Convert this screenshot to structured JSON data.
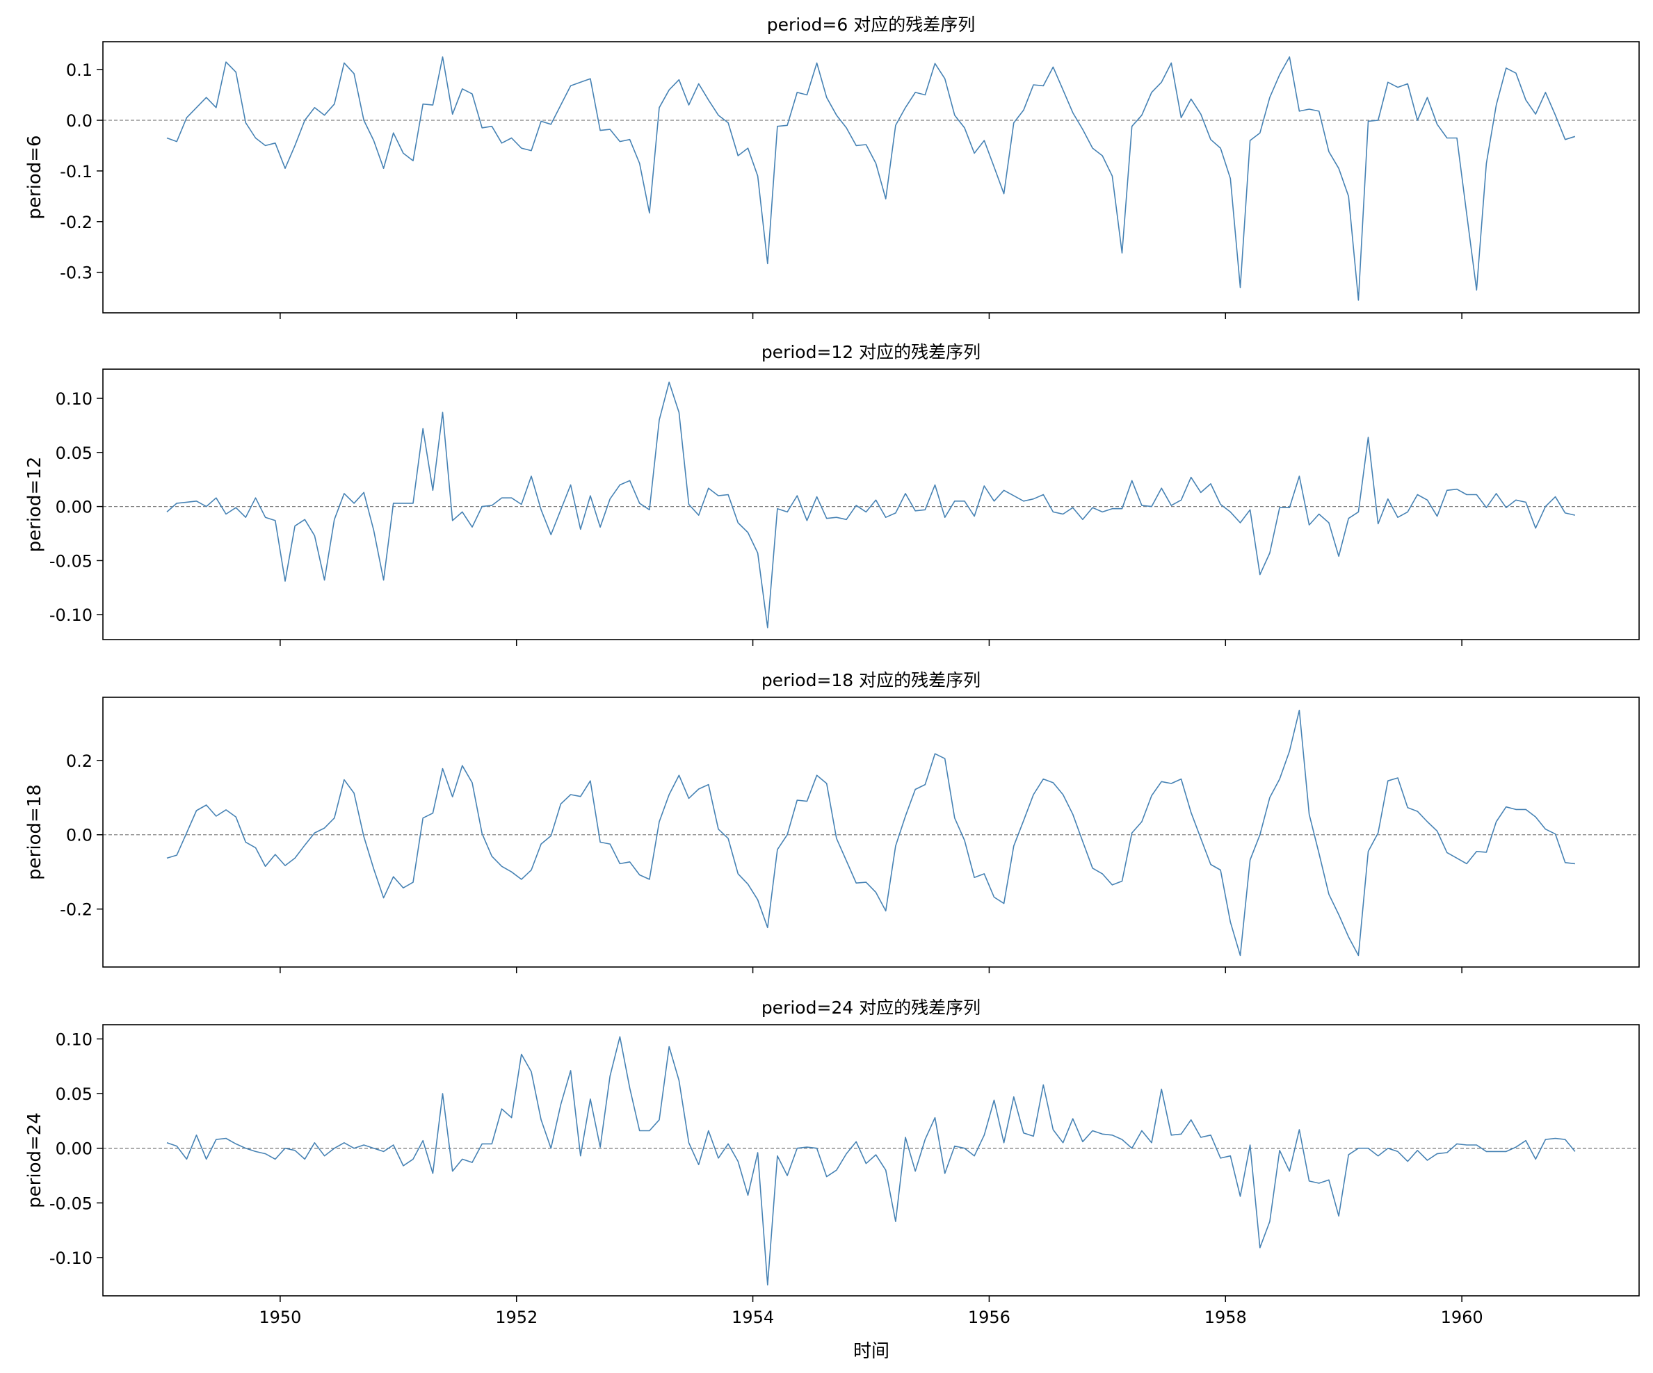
{
  "figure": {
    "xlabel": "时间"
  },
  "chart_data": [
    {
      "type": "line",
      "title": "period=6 对应的残差序列",
      "ylabel": "period=6",
      "xlim": [
        1948.5,
        1961.5
      ],
      "ylim": [
        -0.38,
        0.155
      ],
      "x_ticks": [
        1950,
        1952,
        1954,
        1956,
        1958,
        1960
      ],
      "x_tick_labels": [],
      "y_ticks": [
        0.1,
        0.0,
        -0.1,
        -0.2,
        -0.3
      ],
      "y_tick_labels": [
        "0.1",
        "0.0",
        "-0.1",
        "-0.2",
        "-0.3"
      ],
      "x_start": 1949.0417,
      "x_step": 0.08333,
      "line_color": "#4682b4",
      "zero_line_color": "#808080",
      "values": [
        -0.035,
        -0.042,
        0.005,
        0.025,
        0.045,
        0.025,
        0.115,
        0.095,
        -0.005,
        -0.035,
        -0.05,
        -0.045,
        -0.095,
        -0.05,
        0.0,
        0.025,
        0.01,
        0.032,
        0.113,
        0.092,
        0.0,
        -0.04,
        -0.095,
        -0.025,
        -0.065,
        -0.08,
        0.032,
        0.03,
        0.125,
        0.012,
        0.062,
        0.052,
        -0.015,
        -0.012,
        -0.045,
        -0.035,
        -0.055,
        -0.06,
        -0.002,
        -0.008,
        0.03,
        0.068,
        0.075,
        0.082,
        -0.02,
        -0.018,
        -0.042,
        -0.038,
        -0.085,
        -0.183,
        0.025,
        0.06,
        0.08,
        0.03,
        0.072,
        0.04,
        0.01,
        -0.005,
        -0.07,
        -0.055,
        -0.11,
        -0.283,
        -0.012,
        -0.01,
        0.055,
        0.05,
        0.113,
        0.045,
        0.01,
        -0.015,
        -0.05,
        -0.048,
        -0.085,
        -0.155,
        -0.01,
        0.025,
        0.055,
        0.05,
        0.112,
        0.082,
        0.01,
        -0.015,
        -0.065,
        -0.04,
        -0.092,
        -0.145,
        -0.005,
        0.02,
        0.07,
        0.068,
        0.105,
        0.06,
        0.015,
        -0.018,
        -0.055,
        -0.07,
        -0.11,
        -0.262,
        -0.012,
        0.01,
        0.055,
        0.075,
        0.113,
        0.005,
        0.042,
        0.012,
        -0.038,
        -0.055,
        -0.115,
        -0.33,
        -0.04,
        -0.025,
        0.045,
        0.09,
        0.125,
        0.018,
        0.022,
        0.018,
        -0.062,
        -0.095,
        -0.15,
        -0.355,
        -0.002,
        0.0,
        0.075,
        0.065,
        0.072,
        0.0,
        0.045,
        -0.008,
        -0.035,
        -0.035,
        -0.185,
        -0.335,
        -0.085,
        0.03,
        0.103,
        0.093,
        0.04,
        0.012,
        0.055,
        0.01,
        -0.038,
        -0.032
      ]
    },
    {
      "type": "line",
      "title": "period=12 对应的残差序列",
      "ylabel": "period=12",
      "xlim": [
        1948.5,
        1961.5
      ],
      "ylim": [
        -0.123,
        0.127
      ],
      "x_ticks": [
        1950,
        1952,
        1954,
        1956,
        1958,
        1960
      ],
      "x_tick_labels": [],
      "y_ticks": [
        0.1,
        0.05,
        0.0,
        -0.05,
        -0.1
      ],
      "y_tick_labels": [
        "0.10",
        "0.05",
        "0.00",
        "-0.05",
        "-0.10"
      ],
      "x_start": 1949.0417,
      "x_step": 0.08333,
      "line_color": "#4682b4",
      "zero_line_color": "#808080",
      "values": [
        -0.005,
        0.003,
        0.004,
        0.005,
        0.0,
        0.008,
        -0.007,
        -0.001,
        -0.01,
        0.008,
        -0.01,
        -0.013,
        -0.069,
        -0.018,
        -0.012,
        -0.027,
        -0.068,
        -0.012,
        0.012,
        0.003,
        0.013,
        -0.022,
        -0.068,
        0.003,
        0.003,
        0.003,
        0.072,
        0.015,
        0.087,
        -0.013,
        -0.005,
        -0.019,
        0.0,
        0.001,
        0.008,
        0.008,
        0.002,
        0.028,
        -0.003,
        -0.026,
        -0.003,
        0.02,
        -0.021,
        0.01,
        -0.019,
        0.007,
        0.02,
        0.024,
        0.003,
        -0.003,
        0.08,
        0.115,
        0.087,
        0.002,
        -0.008,
        0.017,
        0.01,
        0.011,
        -0.015,
        -0.024,
        -0.043,
        -0.112,
        -0.002,
        -0.005,
        0.01,
        -0.013,
        0.009,
        -0.011,
        -0.01,
        -0.012,
        0.001,
        -0.005,
        0.006,
        -0.01,
        -0.006,
        0.012,
        -0.004,
        -0.003,
        0.02,
        -0.01,
        0.005,
        0.005,
        -0.009,
        0.019,
        0.005,
        0.015,
        0.01,
        0.005,
        0.007,
        0.011,
        -0.005,
        -0.007,
        -0.001,
        -0.012,
        -0.001,
        -0.005,
        -0.002,
        -0.002,
        0.024,
        0.001,
        0.0,
        0.017,
        0.001,
        0.006,
        0.027,
        0.013,
        0.021,
        0.002,
        -0.005,
        -0.015,
        -0.003,
        -0.063,
        -0.043,
        -0.001,
        -0.001,
        0.028,
        -0.017,
        -0.007,
        -0.015,
        -0.046,
        -0.011,
        -0.005,
        0.064,
        -0.016,
        0.007,
        -0.01,
        -0.005,
        0.011,
        0.006,
        -0.009,
        0.015,
        0.016,
        0.011,
        0.011,
        -0.001,
        0.012,
        -0.001,
        0.006,
        0.004,
        -0.02,
        0.0,
        0.009,
        -0.006,
        -0.008
      ]
    },
    {
      "type": "line",
      "title": "period=18 对应的残差序列",
      "ylabel": "period=18",
      "xlim": [
        1948.5,
        1961.5
      ],
      "ylim": [
        -0.356,
        0.37
      ],
      "x_ticks": [
        1950,
        1952,
        1954,
        1956,
        1958,
        1960
      ],
      "x_tick_labels": [],
      "y_ticks": [
        0.2,
        0.0,
        -0.2
      ],
      "y_tick_labels": [
        "0.2",
        "0.0",
        "-0.2"
      ],
      "x_start": 1949.0417,
      "x_step": 0.08333,
      "line_color": "#4682b4",
      "zero_line_color": "#808080",
      "values": [
        -0.063,
        -0.055,
        0.005,
        0.065,
        0.08,
        0.05,
        0.067,
        0.048,
        -0.02,
        -0.035,
        -0.085,
        -0.053,
        -0.083,
        -0.063,
        -0.028,
        0.005,
        0.018,
        0.045,
        0.148,
        0.112,
        -0.005,
        -0.092,
        -0.17,
        -0.113,
        -0.143,
        -0.128,
        0.045,
        0.058,
        0.178,
        0.102,
        0.186,
        0.14,
        0.003,
        -0.058,
        -0.085,
        -0.1,
        -0.12,
        -0.095,
        -0.025,
        -0.003,
        0.083,
        0.108,
        0.103,
        0.145,
        -0.02,
        -0.025,
        -0.078,
        -0.073,
        -0.108,
        -0.12,
        0.035,
        0.108,
        0.16,
        0.098,
        0.123,
        0.135,
        0.015,
        -0.01,
        -0.105,
        -0.133,
        -0.175,
        -0.25,
        -0.04,
        0.0,
        0.093,
        0.09,
        0.16,
        0.138,
        -0.01,
        -0.07,
        -0.13,
        -0.128,
        -0.155,
        -0.205,
        -0.03,
        0.05,
        0.122,
        0.135,
        0.218,
        0.205,
        0.045,
        -0.015,
        -0.115,
        -0.105,
        -0.168,
        -0.185,
        -0.03,
        0.038,
        0.108,
        0.15,
        0.14,
        0.108,
        0.055,
        -0.018,
        -0.09,
        -0.105,
        -0.135,
        -0.125,
        0.005,
        0.035,
        0.105,
        0.143,
        0.138,
        0.15,
        0.06,
        -0.01,
        -0.08,
        -0.095,
        -0.235,
        -0.325,
        -0.068,
        0.0,
        0.1,
        0.15,
        0.225,
        0.335,
        0.055,
        -0.05,
        -0.16,
        -0.215,
        -0.275,
        -0.325,
        -0.045,
        0.005,
        0.145,
        0.153,
        0.073,
        0.063,
        0.035,
        0.01,
        -0.048,
        -0.063,
        -0.078,
        -0.045,
        -0.047,
        0.035,
        0.075,
        0.068,
        0.068,
        0.048,
        0.015,
        0.002,
        -0.075,
        -0.078
      ]
    },
    {
      "type": "line",
      "title": "period=24 对应的残差序列",
      "ylabel": "period=24",
      "xlim": [
        1948.5,
        1961.5
      ],
      "ylim": [
        -0.135,
        0.113
      ],
      "x_ticks": [
        1950,
        1952,
        1954,
        1956,
        1958,
        1960
      ],
      "x_tick_labels": [
        "1950",
        "1952",
        "1954",
        "1956",
        "1958",
        "1960"
      ],
      "y_ticks": [
        0.1,
        0.05,
        0.0,
        -0.05,
        -0.1
      ],
      "y_tick_labels": [
        "0.10",
        "0.05",
        "0.00",
        "-0.05",
        "-0.10"
      ],
      "x_start": 1949.0417,
      "x_step": 0.08333,
      "line_color": "#4682b4",
      "zero_line_color": "#808080",
      "values": [
        0.005,
        0.002,
        -0.01,
        0.012,
        -0.01,
        0.008,
        0.009,
        0.004,
        0.0,
        -0.003,
        -0.005,
        -0.01,
        0.0,
        -0.002,
        -0.01,
        0.005,
        -0.007,
        0.0,
        0.005,
        0.0,
        0.003,
        0.0,
        -0.003,
        0.003,
        -0.016,
        -0.01,
        0.007,
        -0.023,
        0.05,
        -0.021,
        -0.01,
        -0.013,
        0.004,
        0.004,
        0.036,
        0.028,
        0.086,
        0.07,
        0.026,
        0.0,
        0.04,
        0.071,
        -0.007,
        0.045,
        0.001,
        0.066,
        0.102,
        0.055,
        0.016,
        0.016,
        0.026,
        0.093,
        0.062,
        0.005,
        -0.015,
        0.016,
        -0.009,
        0.004,
        -0.012,
        -0.043,
        -0.004,
        -0.125,
        -0.007,
        -0.025,
        0.0,
        0.001,
        0.0,
        -0.026,
        -0.02,
        -0.005,
        0.006,
        -0.014,
        -0.006,
        -0.02,
        -0.067,
        0.01,
        -0.021,
        0.008,
        0.028,
        -0.023,
        0.002,
        0.0,
        -0.007,
        0.012,
        0.044,
        0.005,
        0.047,
        0.014,
        0.011,
        0.058,
        0.017,
        0.005,
        0.027,
        0.006,
        0.016,
        0.013,
        0.012,
        0.008,
        0.0,
        0.016,
        0.005,
        0.054,
        0.012,
        0.013,
        0.026,
        0.01,
        0.012,
        -0.009,
        -0.007,
        -0.044,
        0.003,
        -0.091,
        -0.067,
        -0.002,
        -0.021,
        0.017,
        -0.03,
        -0.032,
        -0.029,
        -0.062,
        -0.006,
        0.0,
        0.0,
        -0.007,
        0.0,
        -0.003,
        -0.012,
        -0.002,
        -0.011,
        -0.005,
        -0.004,
        0.004,
        0.003,
        0.003,
        -0.003,
        -0.003,
        -0.003,
        0.001,
        0.007,
        -0.01,
        0.008,
        0.009,
        0.008,
        -0.003
      ]
    }
  ]
}
